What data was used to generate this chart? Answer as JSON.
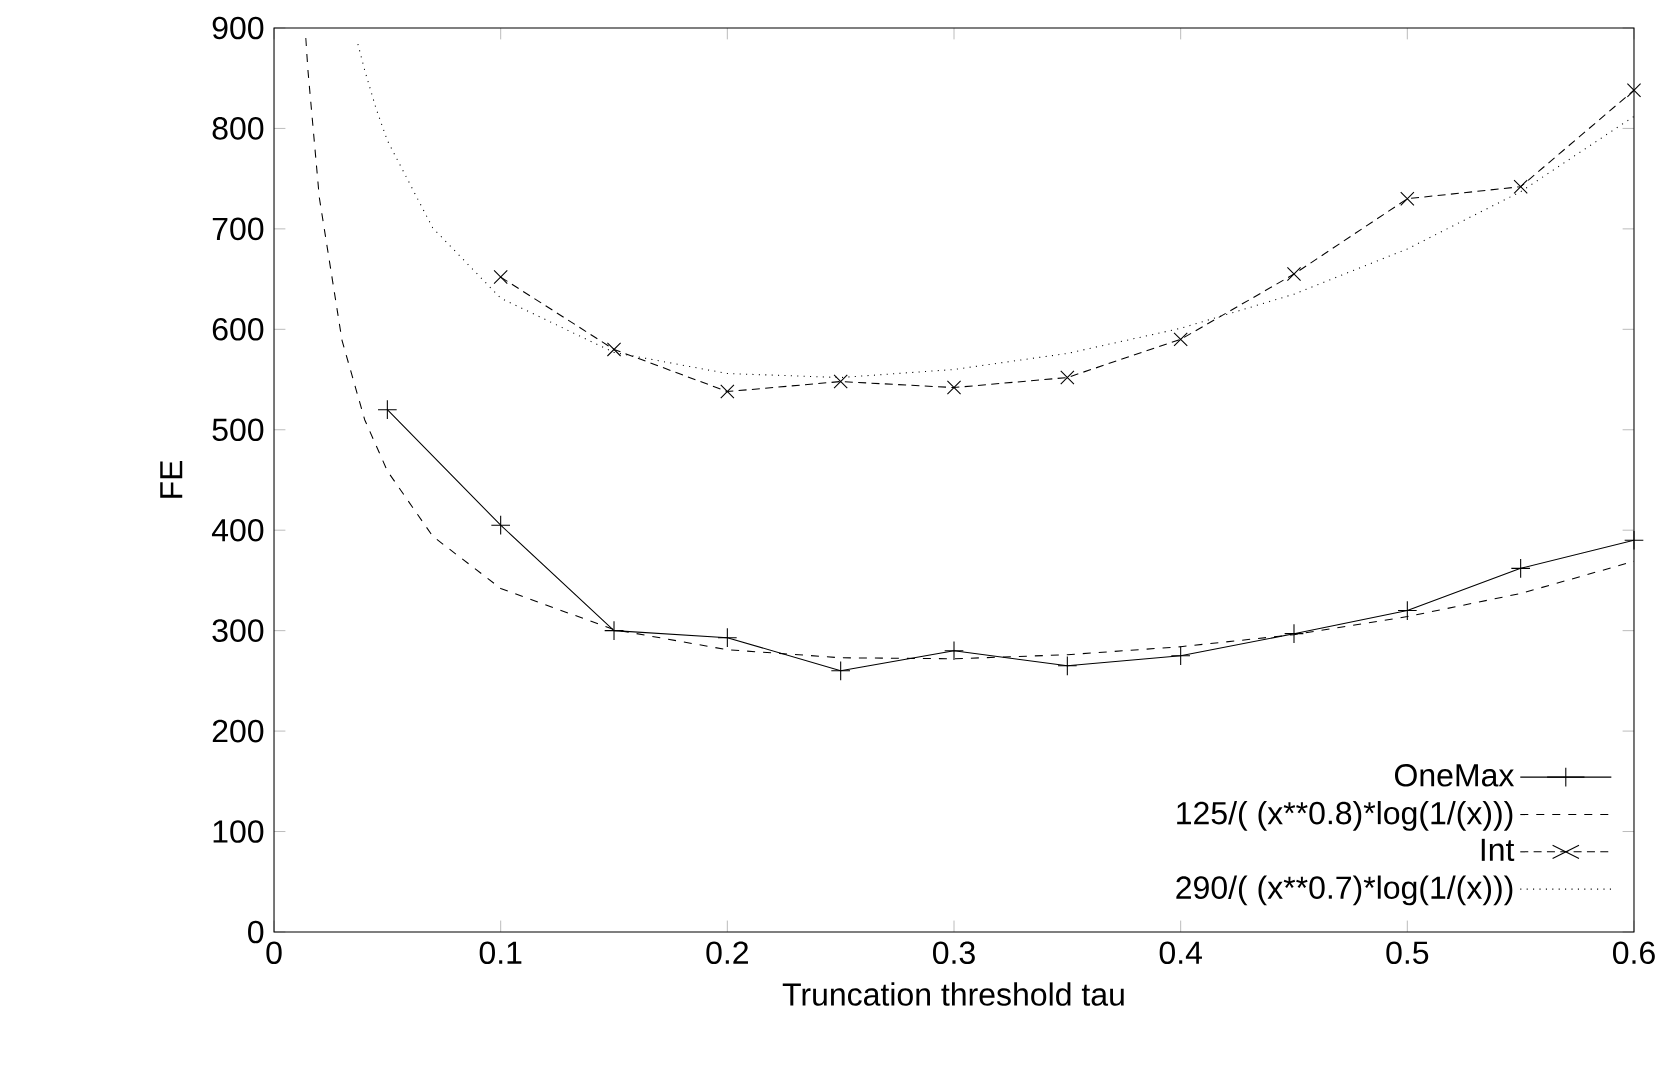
{
  "chart_data": {
    "type": "line",
    "xlabel": "Truncation threshold tau",
    "ylabel": "FE",
    "xlim": [
      0,
      0.6
    ],
    "ylim": [
      0,
      900
    ],
    "xticks": [
      0,
      0.1,
      0.2,
      0.3,
      0.4,
      0.5,
      0.6
    ],
    "yticks": [
      0,
      100,
      200,
      300,
      400,
      500,
      600,
      700,
      800,
      900
    ],
    "legend": "bottom right",
    "grid": false,
    "series": [
      {
        "name": "OneMax",
        "color": "#000000",
        "marker": "plus",
        "line_style": "solid",
        "x": [
          0.05,
          0.1,
          0.15,
          0.2,
          0.25,
          0.3,
          0.35,
          0.4,
          0.45,
          0.5,
          0.55,
          0.6
        ],
        "values": [
          520,
          405,
          300,
          293,
          260,
          280,
          265,
          275,
          297,
          320,
          362,
          390
        ]
      },
      {
        "name": "125/( (x**0.8)*log(1/(x)))",
        "color": "#000000",
        "marker": "none",
        "line_style": "dashed",
        "x": [
          0.014,
          0.015,
          0.02,
          0.03,
          0.04,
          0.05,
          0.07,
          0.1,
          0.15,
          0.2,
          0.25,
          0.3,
          0.35,
          0.4,
          0.45,
          0.5,
          0.55,
          0.6
        ],
        "values": [
          890,
          857,
          731,
          589,
          510,
          459,
          394,
          342,
          301,
          281,
          273,
          272,
          276,
          284,
          296,
          314,
          337,
          369
        ]
      },
      {
        "name": "Int",
        "color": "#000000",
        "marker": "cross",
        "line_style": "dashed",
        "x": [
          0.1,
          0.15,
          0.2,
          0.25,
          0.3,
          0.35,
          0.4,
          0.45,
          0.5,
          0.55,
          0.6
        ],
        "values": [
          652,
          580,
          538,
          548,
          542,
          552,
          590,
          655,
          730,
          742,
          838
        ]
      },
      {
        "name": "290/( (x**0.7)*log(1/(x)))",
        "color": "#000000",
        "marker": "none",
        "line_style": "dotted",
        "x": [
          0.037,
          0.04,
          0.045,
          0.05,
          0.07,
          0.1,
          0.15,
          0.2,
          0.25,
          0.3,
          0.35,
          0.4,
          0.45,
          0.5,
          0.55,
          0.6
        ],
        "values": [
          884,
          858,
          820,
          788,
          701,
          631,
          577,
          556,
          552,
          560,
          576,
          601,
          635,
          680,
          737,
          812
        ]
      }
    ]
  }
}
